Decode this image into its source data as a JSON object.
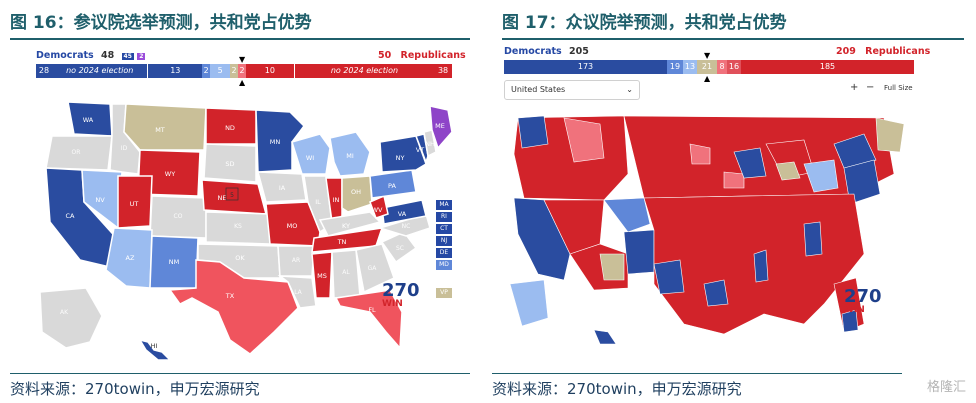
{
  "left_panel": {
    "title": "图 16：参议院选举预测，共和党占优势",
    "dem_label": "Democrats",
    "dem_count": "48",
    "dem_badges": [
      "45",
      "2"
    ],
    "rep_count": "50",
    "rep_label": "Republicans",
    "bar": [
      {
        "label": "28",
        "color": "#2a4ca0"
      },
      {
        "label": "no 2024 election",
        "color": "#2a4ca0"
      },
      {
        "label": "13",
        "color": "#2a4ca0"
      },
      {
        "label": "2",
        "color": "#5f87d8"
      },
      {
        "label": "5",
        "color": "#9bbcf0"
      },
      {
        "label": "2",
        "color": "#c9bf98"
      },
      {
        "label": "2",
        "color": "#f0727c"
      },
      {
        "label": "10",
        "color": "#d2232a"
      },
      {
        "label": "no 2024 election",
        "color": "#d2232a"
      },
      {
        "label": "38",
        "color": "#d2232a"
      }
    ],
    "state_labels": [
      "WA",
      "MT",
      "ND",
      "MN",
      "ME",
      "VT",
      "NH",
      "NY",
      "MI",
      "WI",
      "SD",
      "WY",
      "NE",
      "IA",
      "OH",
      "PA",
      "NV",
      "UT",
      "CA",
      "IL",
      "IN",
      "WV",
      "MO",
      "VA",
      "KY",
      "TN",
      "AZ",
      "NM",
      "OK",
      "TX",
      "MS",
      "FL",
      "HI",
      "AK",
      "CO",
      "KS",
      "OR",
      "ID",
      "AL",
      "GA",
      "SC",
      "NC",
      "LA",
      "AR"
    ],
    "side_boxes": [
      "MA",
      "RI",
      "CT",
      "NJ",
      "DE",
      "MD"
    ],
    "vp_box": "VP",
    "ne_box": "5",
    "logo_top": "270",
    "logo_bottom": "WIN",
    "source": "资料来源：270towin，申万宏源研究"
  },
  "right_panel": {
    "title": "图 17：众议院举预测，共和党占优势",
    "dem_label": "Democrats",
    "dem_count": "205",
    "rep_count": "209",
    "rep_label": "Republicans",
    "bar": [
      {
        "label": "173",
        "color": "#2a4ca0"
      },
      {
        "label": "19",
        "color": "#5f87d8"
      },
      {
        "label": "13",
        "color": "#9bbcf0"
      },
      {
        "label": "21",
        "color": "#c9bf98"
      },
      {
        "label": "8",
        "color": "#f0727c"
      },
      {
        "label": "16",
        "color": "#e0505a"
      },
      {
        "label": "185",
        "color": "#d2232a"
      }
    ],
    "dropdown": "United States",
    "zoom_in": "+",
    "zoom_out": "−",
    "full_size": "Full Size",
    "logo_top": "270",
    "logo_bottom": "WIN",
    "source": "资料来源：270towin，申万宏源研究",
    "watermark": "格隆汇"
  },
  "colors": {
    "safe_dem": "#2a4ca0",
    "likely_dem": "#5f87d8",
    "lean_dem": "#9bbcf0",
    "tossup": "#c9bf98",
    "lean_rep": "#f0727c",
    "safe_rep": "#d2232a",
    "no_election": "#d9d9d9",
    "title_color": "#1f5f6b"
  }
}
